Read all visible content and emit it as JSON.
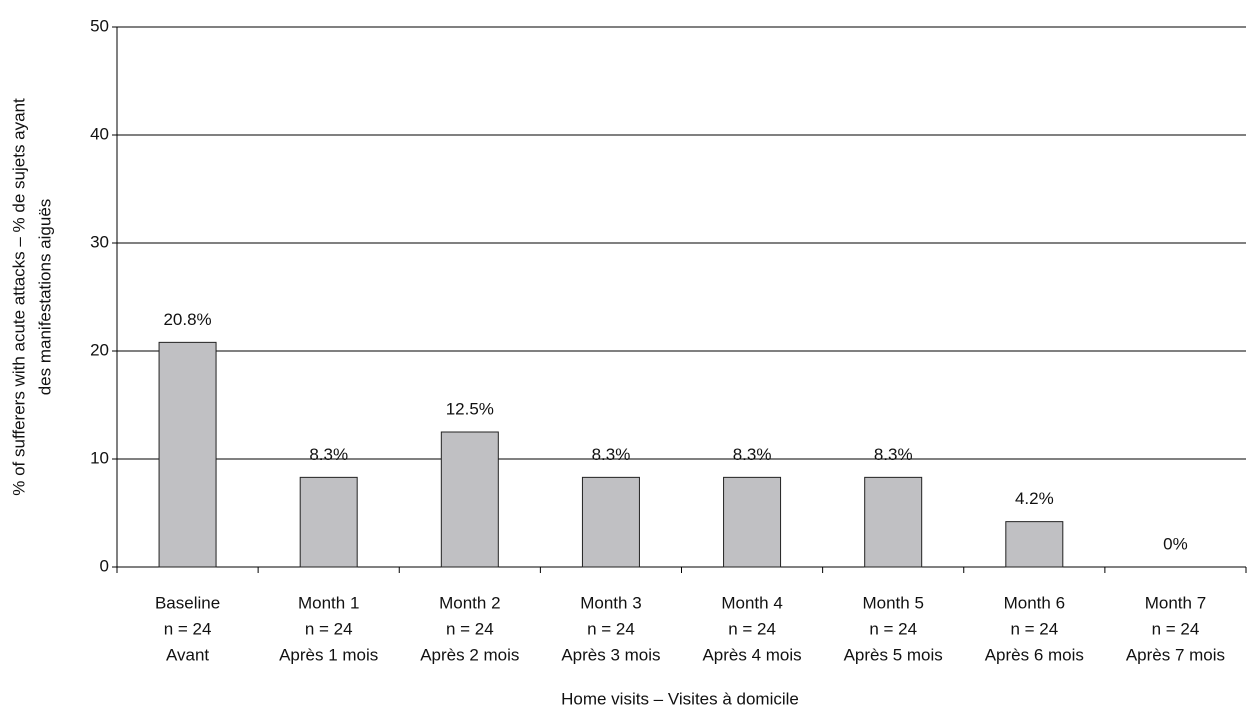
{
  "chart_data": {
    "type": "bar",
    "x_label": "Home visits – Visites à domicile",
    "y_label": [
      "% of sufferers with acute attacks – % de sujets ayant",
      "des manifestations aiguës"
    ],
    "categories": [
      [
        "Baseline",
        "n = 24",
        "Avant"
      ],
      [
        "Month 1",
        "n = 24",
        "Après 1 mois"
      ],
      [
        "Month 2",
        "n = 24",
        "Après 2 mois"
      ],
      [
        "Month 3",
        "n = 24",
        "Après 3 mois"
      ],
      [
        "Month 4",
        "n = 24",
        "Après 4 mois"
      ],
      [
        "Month 5",
        "n = 24",
        "Après 5 mois"
      ],
      [
        "Month 6",
        "n = 24",
        "Après 6 mois"
      ],
      [
        "Month 7",
        "n = 24",
        "Après 7 mois"
      ]
    ],
    "values": [
      20.8,
      8.3,
      12.5,
      8.3,
      8.3,
      8.3,
      4.2,
      0
    ],
    "value_labels": [
      "20.8%",
      "8.3%",
      "12.5%",
      "8.3%",
      "8.3%",
      "8.3%",
      "4.2%",
      "0%"
    ],
    "color": "#c0c0c3",
    "ylim": [
      0,
      50
    ],
    "yticks": [
      0,
      10,
      20,
      30,
      40,
      50
    ],
    "grid": true
  }
}
